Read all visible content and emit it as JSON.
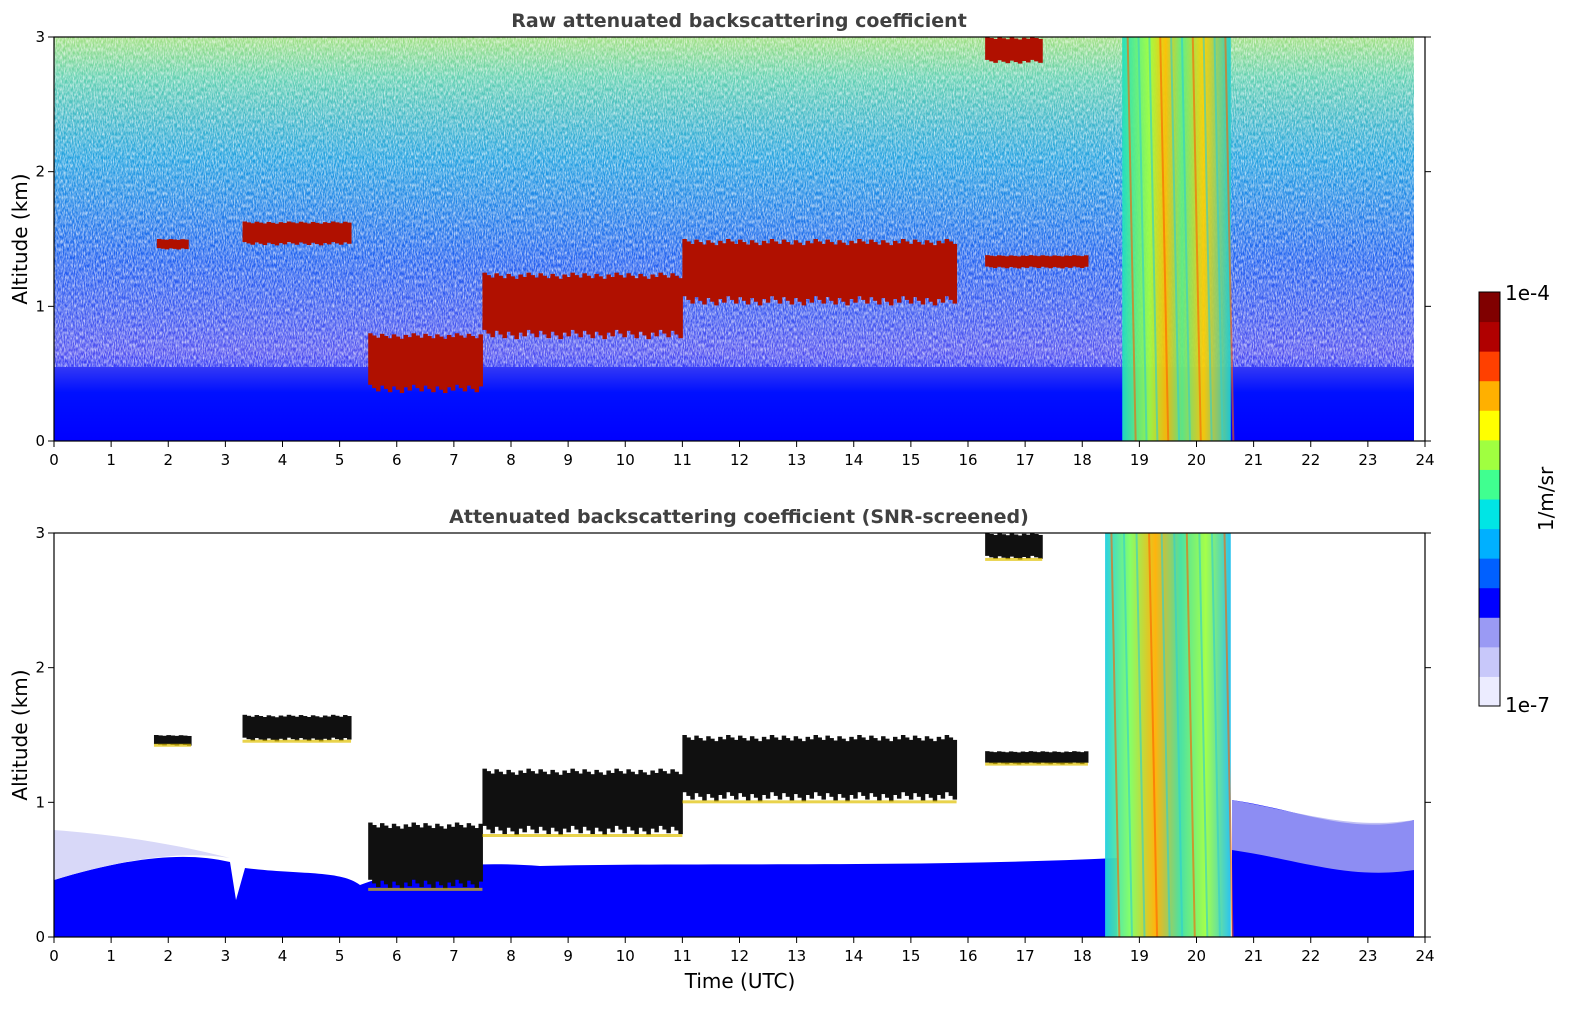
{
  "chart_data": [
    {
      "type": "heatmap",
      "title": "Raw attenuated backscattering coefficient",
      "xlabel": "",
      "ylabel": "Altitude (km)",
      "xlim": [
        0,
        24
      ],
      "ylim": [
        0,
        3
      ],
      "xticks": [
        "0",
        "1",
        "2",
        "3",
        "4",
        "5",
        "6",
        "7",
        "8",
        "9",
        "10",
        "11",
        "12",
        "13",
        "14",
        "15",
        "16",
        "17",
        "18",
        "19",
        "20",
        "21",
        "22",
        "23",
        "24"
      ],
      "yticks": [
        "0",
        "1",
        "2",
        "3"
      ],
      "features": [
        {
          "x": [
            1.8,
            2.35
          ],
          "y": [
            1.42,
            1.5
          ],
          "level": "high"
        },
        {
          "x": [
            3.3,
            5.2
          ],
          "y": [
            1.45,
            1.63
          ],
          "level": "high"
        },
        {
          "x": [
            5.5,
            7.5
          ],
          "y": [
            0.35,
            0.8
          ],
          "level": "high"
        },
        {
          "x": [
            7.5,
            11.0
          ],
          "y": [
            0.75,
            1.25
          ],
          "level": "high"
        },
        {
          "x": [
            11.0,
            15.8
          ],
          "y": [
            1.0,
            1.5
          ],
          "level": "high"
        },
        {
          "x": [
            16.3,
            18.1
          ],
          "y": [
            1.28,
            1.38
          ],
          "level": "high"
        },
        {
          "x": [
            16.3,
            17.3
          ],
          "y": [
            2.8,
            3.0
          ],
          "level": "high"
        },
        {
          "x": [
            18.7,
            20.6
          ],
          "y": [
            0,
            3.0
          ],
          "level": "mid"
        }
      ]
    },
    {
      "type": "heatmap",
      "title": "Attenuated backscattering coefficient (SNR-screened)",
      "xlabel": "Time (UTC)",
      "ylabel": "Altitude (km)",
      "xlim": [
        0,
        24
      ],
      "ylim": [
        0,
        3
      ],
      "xticks": [
        "0",
        "1",
        "2",
        "3",
        "4",
        "5",
        "6",
        "7",
        "8",
        "9",
        "10",
        "11",
        "12",
        "13",
        "14",
        "15",
        "16",
        "17",
        "18",
        "19",
        "20",
        "21",
        "22",
        "23",
        "24"
      ],
      "yticks": [
        "0",
        "1",
        "2",
        "3"
      ],
      "features": [
        {
          "x": [
            1.75,
            2.4
          ],
          "y": [
            1.42,
            1.5
          ],
          "level": "saturated"
        },
        {
          "x": [
            3.3,
            5.2
          ],
          "y": [
            1.45,
            1.65
          ],
          "level": "saturated"
        },
        {
          "x": [
            5.5,
            7.5
          ],
          "y": [
            0.35,
            0.85
          ],
          "level": "saturated"
        },
        {
          "x": [
            7.5,
            11.0
          ],
          "y": [
            0.75,
            1.25
          ],
          "level": "saturated"
        },
        {
          "x": [
            11.0,
            15.8
          ],
          "y": [
            1.0,
            1.5
          ],
          "level": "saturated"
        },
        {
          "x": [
            16.3,
            18.1
          ],
          "y": [
            1.28,
            1.38
          ],
          "level": "saturated"
        },
        {
          "x": [
            16.3,
            17.3
          ],
          "y": [
            2.8,
            3.0
          ],
          "level": "saturated"
        },
        {
          "x": [
            18.4,
            20.6
          ],
          "y": [
            0,
            3.0
          ],
          "level": "mid"
        }
      ]
    }
  ],
  "colorbar": {
    "label": "1/m/sr",
    "max_label": "1e-4",
    "min_label": "1e-7",
    "colormap": "jet",
    "colors": [
      "#ececff",
      "#c8c8fa",
      "#9a9af4",
      "#0000ff",
      "#0060ff",
      "#00b0ff",
      "#00e5e5",
      "#40ff90",
      "#a0ff40",
      "#ffff00",
      "#ffb000",
      "#ff4000",
      "#b00000",
      "#800000"
    ]
  }
}
